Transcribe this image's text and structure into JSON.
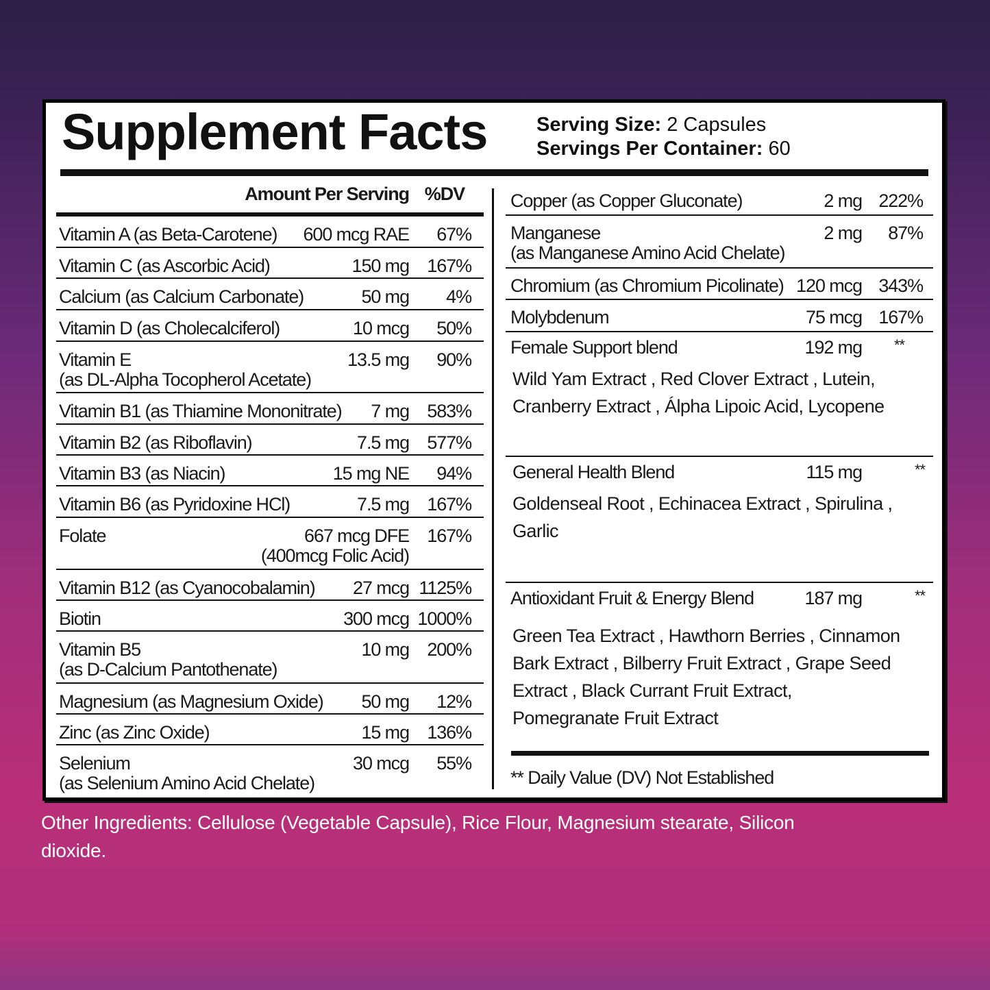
{
  "title": "Supplement Facts",
  "serving_size_label": "Serving Size:",
  "serving_size": "2 Capsules",
  "servings_label": "Servings Per Container:",
  "servings": "60",
  "header": {
    "amount": "Amount Per Serving",
    "dv": "%DV"
  },
  "left_rows": [
    {
      "name": "Vitamin A (as Beta-Carotene)",
      "amount": "600 mcg RAE",
      "dv": "67%"
    },
    {
      "name": "Vitamin C (as Ascorbic Acid)",
      "amount": "150 mg",
      "dv": "167%"
    },
    {
      "name": "Calcium (as Calcium Carbonate)",
      "amount": "50 mg",
      "dv": "4%"
    },
    {
      "name": "Vitamin D (as Cholecalciferol)",
      "amount": "10 mcg",
      "dv": "50%"
    },
    {
      "name": "Vitamin E",
      "name2": "(as DL-Alpha Tocopherol Acetate)",
      "amount": "13.5 mg",
      "dv": "90%"
    },
    {
      "name": "Vitamin B1 (as Thiamine Mononitrate)",
      "amount": "7 mg",
      "dv": "583%"
    },
    {
      "name": "Vitamin B2 (as Riboflavin)",
      "amount": "7.5 mg",
      "dv": "577%"
    },
    {
      "name": "Vitamin B3 (as Niacin)",
      "amount": "15 mg NE",
      "dv": "94%"
    },
    {
      "name": "Vitamin B6 (as Pyridoxine HCl)",
      "amount": "7.5 mg",
      "dv": "167%"
    },
    {
      "name": "Folate",
      "amount": "667 mcg DFE",
      "amount2": "(400mcg Folic Acid)",
      "dv": "167%"
    },
    {
      "name": "Vitamin B12 (as Cyanocobalamin)",
      "amount": "27 mcg",
      "dv": "1125%"
    },
    {
      "name": "Biotin",
      "amount": "300 mcg",
      "dv": "1000%"
    },
    {
      "name": "Vitamin B5",
      "name2": "(as D-Calcium Pantothenate)",
      "amount": "10 mg",
      "dv": "200%"
    },
    {
      "name": "Magnesium (as Magnesium Oxide)",
      "amount": "50 mg",
      "dv": "12%"
    },
    {
      "name": "Zinc (as Zinc Oxide)",
      "amount": "15 mg",
      "dv": "136%"
    },
    {
      "name": "Selenium",
      "name2": "(as Selenium Amino Acid Chelate)",
      "amount": "30 mcg",
      "dv": "55%"
    }
  ],
  "right_rows": [
    {
      "name": "Copper (as Copper Gluconate)",
      "amount": "2 mg",
      "dv": "222%"
    },
    {
      "name": "Manganese",
      "name2": "(as Manganese Amino Acid Chelate)",
      "amount": "2 mg",
      "dv": "87%"
    },
    {
      "name": "Chromium (as Chromium Picolinate)",
      "amount": "120 mcg",
      "dv": "343%"
    },
    {
      "name": "Molybdenum",
      "amount": "75 mcg",
      "dv": "167%"
    }
  ],
  "blends": [
    {
      "name": "Female Support blend",
      "amount": "192 mg",
      "dv": "**",
      "ingredients": "Wild Yam Extract , Red Clover Extract , Lutein, Cranberry Extract , Álpha Lipoic Acid, Lycopene"
    },
    {
      "name": "General Health Blend",
      "amount": "115 mg",
      "dv": "**",
      "ingredients": "Goldenseal Root , Echinacea Extract , Spirulina , Garlic"
    },
    {
      "name": "Antioxidant Fruit & Energy Blend",
      "amount": "187 mg",
      "dv": "**",
      "ingredients": "Green Tea Extract , Hawthorn Berries , Cinnamon Bark Extract , Bilberry Fruit Extract , Grape Seed Extract , Black Currant Fruit Extract, Pomegranate Fruit Extract"
    }
  ],
  "footnote": "** Daily Value (DV) Not Established",
  "other_ingredients": "Other Ingredients: Cellulose (Vegetable Capsule), Rice Flour, Magnesium stearate, Silicon dioxide."
}
